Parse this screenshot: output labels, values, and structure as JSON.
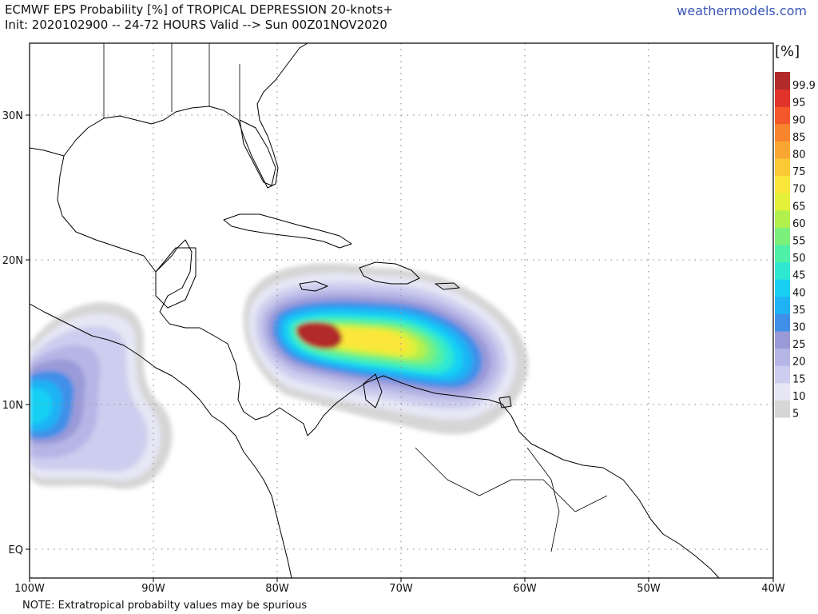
{
  "header": {
    "title_line1": "ECMWF EPS Probability [%] of TROPICAL DEPRESSION 20-knots+",
    "title_line2": "Init: 2020102900 -- 24-72 HOURS Valid --> Sun 00Z01NOV2020",
    "brand": "weathermodels.com"
  },
  "map": {
    "lon_ticks": [
      "100W",
      "90W",
      "80W",
      "70W",
      "60W",
      "50W",
      "40W"
    ],
    "lat_ticks": [
      "30N",
      "20N",
      "10N",
      "EQ"
    ],
    "colors": {
      "land_outline": "#000000",
      "grid": "#9a9a9a"
    }
  },
  "colorbar": {
    "unit": "[%]",
    "levels": [
      "5",
      "10",
      "15",
      "20",
      "25",
      "30",
      "35",
      "40",
      "45",
      "50",
      "55",
      "60",
      "65",
      "70",
      "75",
      "80",
      "85",
      "90",
      "95",
      "99.9"
    ],
    "colors": [
      "#d6d6d6",
      "#e6e6f5",
      "#cdcdef",
      "#b5b5e6",
      "#9a9ad8",
      "#3f8fe8",
      "#1fb2f5",
      "#18d0f4",
      "#2ee8d2",
      "#4ff0a8",
      "#7bf07a",
      "#b2f04e",
      "#e3f03a",
      "#fbe63b",
      "#fbc836",
      "#f9a732",
      "#f9842e",
      "#f4582a",
      "#e0332a",
      "#b22a2a"
    ]
  },
  "footer": {
    "note": "NOTE: Extratropical probabilty values may be spurious"
  }
}
